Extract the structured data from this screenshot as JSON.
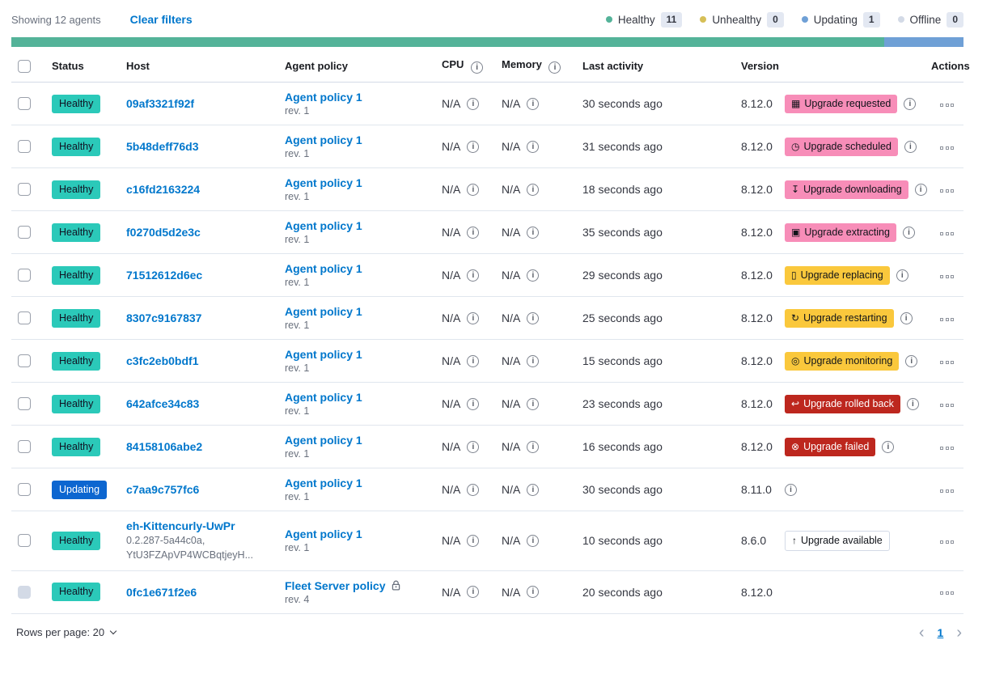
{
  "header": {
    "showing": "Showing 12 agents",
    "clear_filters": "Clear filters",
    "legend": [
      {
        "status": "Healthy",
        "count": "11",
        "color": "#54B399"
      },
      {
        "status": "Unhealthy",
        "count": "0",
        "color": "#D6BF57"
      },
      {
        "status": "Updating",
        "count": "1",
        "color": "#6FA0D6"
      },
      {
        "status": "Offline",
        "count": "0",
        "color": "#D3DAE6"
      }
    ],
    "status_bar": [
      {
        "status": "Healthy",
        "color": "#54B399",
        "fraction": 0.9167
      },
      {
        "status": "Updating",
        "color": "#6FA0D6",
        "fraction": 0.0833
      }
    ]
  },
  "colors": {
    "healthy_badge": "#2BC9B9",
    "updating_badge": "#0D66D0",
    "upgrade_accent": "#F78DB8",
    "upgrade_warning": "#FAC83C",
    "upgrade_danger": "#BD271E",
    "link": "#0077CC"
  },
  "table": {
    "headers": {
      "status": "Status",
      "host": "Host",
      "policy": "Agent policy",
      "cpu": "CPU",
      "memory": "Memory",
      "last_activity": "Last activity",
      "version": "Version",
      "actions": "Actions"
    },
    "rows": [
      {
        "status": "Healthy",
        "status_variant": "healthy",
        "host": "09af3321f92f",
        "host_sub": [],
        "policy": "Agent policy 1",
        "policy_rev": "rev. 1",
        "policy_locked": false,
        "cpu": "N/A",
        "memory": "N/A",
        "last_activity": "30 seconds ago",
        "version": "8.12.0",
        "upgrade": {
          "label": "Upgrade requested",
          "variant": "accent",
          "icon": "calendar-icon"
        },
        "version_info": true,
        "checkbox_disabled": false
      },
      {
        "status": "Healthy",
        "status_variant": "healthy",
        "host": "5b48deff76d3",
        "host_sub": [],
        "policy": "Agent policy 1",
        "policy_rev": "rev. 1",
        "policy_locked": false,
        "cpu": "N/A",
        "memory": "N/A",
        "last_activity": "31 seconds ago",
        "version": "8.12.0",
        "upgrade": {
          "label": "Upgrade scheduled",
          "variant": "accent",
          "icon": "clock-icon"
        },
        "version_info": true,
        "checkbox_disabled": false
      },
      {
        "status": "Healthy",
        "status_variant": "healthy",
        "host": "c16fd2163224",
        "host_sub": [],
        "policy": "Agent policy 1",
        "policy_rev": "rev. 1",
        "policy_locked": false,
        "cpu": "N/A",
        "memory": "N/A",
        "last_activity": "18 seconds ago",
        "version": "8.12.0",
        "upgrade": {
          "label": "Upgrade downloading",
          "variant": "accent",
          "icon": "download-icon"
        },
        "version_info": true,
        "checkbox_disabled": false
      },
      {
        "status": "Healthy",
        "status_variant": "healthy",
        "host": "f0270d5d2e3c",
        "host_sub": [],
        "policy": "Agent policy 1",
        "policy_rev": "rev. 1",
        "policy_locked": false,
        "cpu": "N/A",
        "memory": "N/A",
        "last_activity": "35 seconds ago",
        "version": "8.12.0",
        "upgrade": {
          "label": "Upgrade extracting",
          "variant": "accent",
          "icon": "package-icon"
        },
        "version_info": true,
        "checkbox_disabled": false
      },
      {
        "status": "Healthy",
        "status_variant": "healthy",
        "host": "71512612d6ec",
        "host_sub": [],
        "policy": "Agent policy 1",
        "policy_rev": "rev. 1",
        "policy_locked": false,
        "cpu": "N/A",
        "memory": "N/A",
        "last_activity": "29 seconds ago",
        "version": "8.12.0",
        "upgrade": {
          "label": "Upgrade replacing",
          "variant": "warning",
          "icon": "document-icon"
        },
        "version_info": true,
        "checkbox_disabled": false
      },
      {
        "status": "Healthy",
        "status_variant": "healthy",
        "host": "8307c9167837",
        "host_sub": [],
        "policy": "Agent policy 1",
        "policy_rev": "rev. 1",
        "policy_locked": false,
        "cpu": "N/A",
        "memory": "N/A",
        "last_activity": "25 seconds ago",
        "version": "8.12.0",
        "upgrade": {
          "label": "Upgrade restarting",
          "variant": "warning",
          "icon": "refresh-icon"
        },
        "version_info": true,
        "checkbox_disabled": false
      },
      {
        "status": "Healthy",
        "status_variant": "healthy",
        "host": "c3fc2eb0bdf1",
        "host_sub": [],
        "policy": "Agent policy 1",
        "policy_rev": "rev. 1",
        "policy_locked": false,
        "cpu": "N/A",
        "memory": "N/A",
        "last_activity": "15 seconds ago",
        "version": "8.12.0",
        "upgrade": {
          "label": "Upgrade monitoring",
          "variant": "warning",
          "icon": "inspect-icon"
        },
        "version_info": true,
        "checkbox_disabled": false
      },
      {
        "status": "Healthy",
        "status_variant": "healthy",
        "host": "642afce34c83",
        "host_sub": [],
        "policy": "Agent policy 1",
        "policy_rev": "rev. 1",
        "policy_locked": false,
        "cpu": "N/A",
        "memory": "N/A",
        "last_activity": "23 seconds ago",
        "version": "8.12.0",
        "upgrade": {
          "label": "Upgrade rolled back",
          "variant": "danger",
          "icon": "return-icon"
        },
        "version_info": true,
        "checkbox_disabled": false
      },
      {
        "status": "Healthy",
        "status_variant": "healthy",
        "host": "84158106abe2",
        "host_sub": [],
        "policy": "Agent policy 1",
        "policy_rev": "rev. 1",
        "policy_locked": false,
        "cpu": "N/A",
        "memory": "N/A",
        "last_activity": "16 seconds ago",
        "version": "8.12.0",
        "upgrade": {
          "label": "Upgrade failed",
          "variant": "danger",
          "icon": "error-icon"
        },
        "version_info": true,
        "checkbox_disabled": false
      },
      {
        "status": "Updating",
        "status_variant": "updating",
        "host": "c7aa9c757fc6",
        "host_sub": [],
        "policy": "Agent policy 1",
        "policy_rev": "rev. 1",
        "policy_locked": false,
        "cpu": "N/A",
        "memory": "N/A",
        "last_activity": "30 seconds ago",
        "version": "8.11.0",
        "upgrade": null,
        "version_info": true,
        "checkbox_disabled": false
      },
      {
        "status": "Healthy",
        "status_variant": "healthy",
        "host": "eh-Kittencurly-UwPr",
        "host_sub": [
          "0.2.287-5a44c0a,",
          "YtU3FZApVP4WCBqtjeyH..."
        ],
        "policy": "Agent policy 1",
        "policy_rev": "rev. 1",
        "policy_locked": false,
        "cpu": "N/A",
        "memory": "N/A",
        "last_activity": "10 seconds ago",
        "version": "8.6.0",
        "upgrade": {
          "label": "Upgrade available",
          "variant": "hollow",
          "icon": "arrow-up-icon"
        },
        "version_info": false,
        "checkbox_disabled": false
      },
      {
        "status": "Healthy",
        "status_variant": "healthy",
        "host": "0fc1e671f2e6",
        "host_sub": [],
        "policy": "Fleet Server policy",
        "policy_rev": "rev. 4",
        "policy_locked": true,
        "cpu": "N/A",
        "memory": "N/A",
        "last_activity": "20 seconds ago",
        "version": "8.12.0",
        "upgrade": null,
        "version_info": false,
        "checkbox_disabled": true
      }
    ]
  },
  "footer": {
    "rows_per_page": "Rows per page: 20",
    "page": "1",
    "prev": "‹",
    "next": "›"
  }
}
